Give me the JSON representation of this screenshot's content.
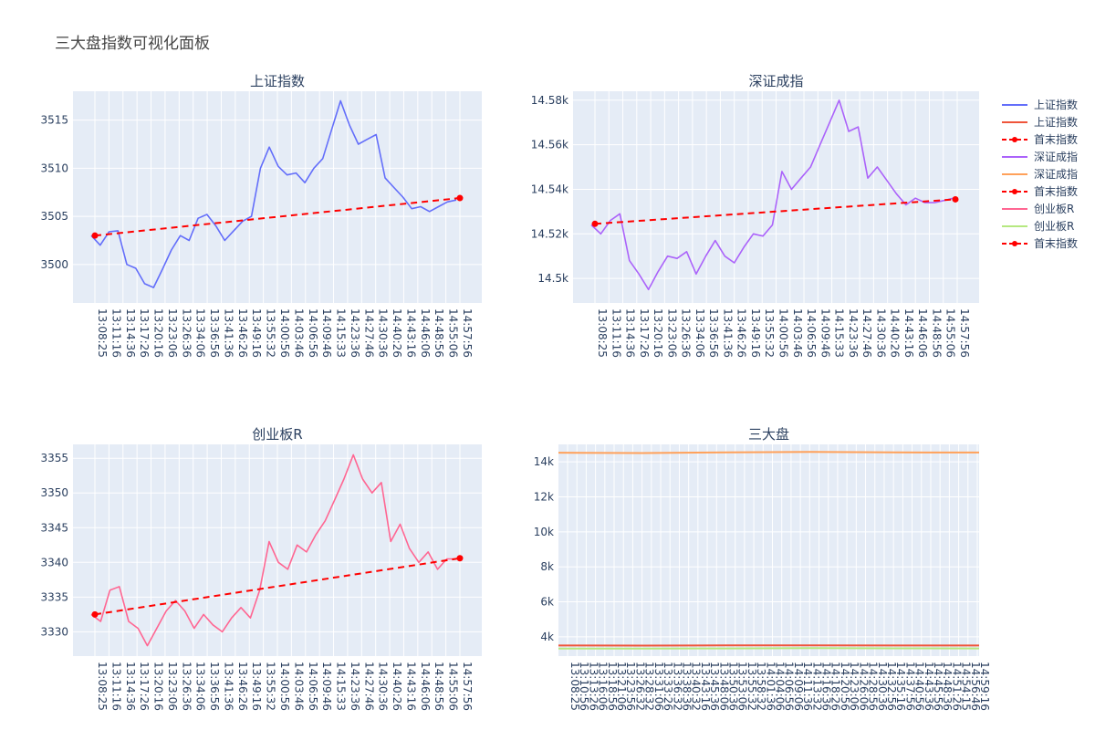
{
  "title": "三大盘指数可视化面板",
  "colors": {
    "shanghai": "#636efa",
    "shenzhen": "#ab63fa",
    "chinext": "#ff6692",
    "endpoints": "#ff0000",
    "ov_shanghai": "#ef553b",
    "ov_shenzhen": "#ffa15a",
    "ov_chinext": "#b6e880",
    "plot_bg": "#e5ecf6",
    "grid": "#ffffff"
  },
  "legend": {
    "items": [
      {
        "label": "上证指数",
        "color": "#636efa",
        "style": "line"
      },
      {
        "label": "上证指数",
        "color": "#ef553b",
        "style": "line"
      },
      {
        "label": "首末指数",
        "color": "#ff0000",
        "style": "dashmarker"
      },
      {
        "label": "深证成指",
        "color": "#ab63fa",
        "style": "line"
      },
      {
        "label": "深证成指",
        "color": "#ffa15a",
        "style": "line"
      },
      {
        "label": "首末指数",
        "color": "#ff0000",
        "style": "dashmarker"
      },
      {
        "label": "创业板R",
        "color": "#ff6692",
        "style": "line"
      },
      {
        "label": "创业板R",
        "color": "#b6e880",
        "style": "line"
      },
      {
        "label": "首末指数",
        "color": "#ff0000",
        "style": "dashmarker"
      }
    ]
  },
  "chart_data": [
    {
      "type": "line",
      "title": "上证指数",
      "xlabel": "",
      "ylabel": "",
      "x_ticks": [
        "13:08:25",
        "13:11:16",
        "13:14:36",
        "13:17:26",
        "13:20:16",
        "13:23:06",
        "13:26:36",
        "13:34:06",
        "13:36:56",
        "13:41:36",
        "13:46:26",
        "13:49:16",
        "13:55:32",
        "14:00:56",
        "14:03:46",
        "14:06:56",
        "14:09:46",
        "14:15:33",
        "14:23:36",
        "14:27:46",
        "14:30:36",
        "14:40:26",
        "14:43:16",
        "14:46:06",
        "14:48:56",
        "14:55:06",
        "14:57:56"
      ],
      "y_ticks": [
        3500,
        3505,
        3510,
        3515
      ],
      "ylim": [
        3496,
        3518
      ],
      "series": [
        {
          "name": "上证指数",
          "key": "shanghai",
          "values": [
            3503.0,
            3502.0,
            3503.4,
            3503.5,
            3500.0,
            3499.6,
            3498.0,
            3497.6,
            3499.5,
            3501.5,
            3503.0,
            3502.5,
            3504.8,
            3505.2,
            3504.0,
            3502.5,
            3503.5,
            3504.5,
            3505.0,
            3510.0,
            3512.2,
            3510.2,
            3509.3,
            3509.5,
            3508.5,
            3510.0,
            3511.0,
            3514.0,
            3517.0,
            3514.5,
            3512.5,
            3513.0,
            3513.5,
            3509.0,
            3508.0,
            3507.0,
            3505.8,
            3506.0,
            3505.5,
            3506.0,
            3506.5,
            3506.7
          ]
        }
      ],
      "endpoints": {
        "name": "首末指数",
        "values": [
          3503.0,
          3506.9
        ]
      }
    },
    {
      "type": "line",
      "title": "深证成指",
      "xlabel": "",
      "ylabel": "",
      "x_ticks": [
        "13:08:25",
        "13:11:16",
        "13:14:36",
        "13:17:26",
        "13:20:16",
        "13:23:06",
        "13:26:36",
        "13:34:06",
        "13:36:56",
        "13:41:36",
        "13:46:26",
        "13:49:16",
        "13:55:32",
        "14:00:56",
        "14:03:46",
        "14:06:56",
        "14:09:46",
        "14:15:33",
        "14:23:36",
        "14:27:46",
        "14:30:36",
        "14:40:26",
        "14:43:16",
        "14:46:06",
        "14:48:56",
        "14:55:06",
        "14:57:56"
      ],
      "y_ticks": [
        14500,
        14520,
        14540,
        14560,
        14580
      ],
      "y_tick_labels": [
        "14.5k",
        "14.52k",
        "14.54k",
        "14.56k",
        "14.58k"
      ],
      "ylim": [
        14489,
        14584
      ],
      "series": [
        {
          "name": "深证成指",
          "key": "shenzhen",
          "values": [
            14524,
            14520,
            14526,
            14529,
            14508,
            14502,
            14495,
            14503,
            14510,
            14509,
            14512,
            14502,
            14510,
            14517,
            14510,
            14507,
            14514,
            14520,
            14519,
            14524,
            14548,
            14540,
            14545,
            14550,
            14560,
            14570,
            14580,
            14566,
            14568,
            14545,
            14550,
            14544,
            14538,
            14533,
            14536,
            14534,
            14534,
            14535,
            14536
          ]
        }
      ],
      "endpoints": {
        "name": "首末指数",
        "values": [
          14524.5,
          14535.5
        ]
      }
    },
    {
      "type": "line",
      "title": "创业板R",
      "xlabel": "",
      "ylabel": "",
      "x_ticks": [
        "13:08:25",
        "13:11:16",
        "13:14:36",
        "13:17:26",
        "13:20:16",
        "13:23:06",
        "13:26:36",
        "13:34:06",
        "13:36:56",
        "13:41:36",
        "13:46:26",
        "13:49:16",
        "13:55:32",
        "14:00:56",
        "14:03:46",
        "14:06:56",
        "14:09:46",
        "14:15:33",
        "14:23:36",
        "14:27:46",
        "14:30:36",
        "14:40:26",
        "14:43:16",
        "14:46:06",
        "14:48:56",
        "14:55:06",
        "14:57:56"
      ],
      "y_ticks": [
        3330,
        3335,
        3340,
        3345,
        3350,
        3355
      ],
      "ylim": [
        3326.5,
        3357
      ],
      "series": [
        {
          "name": "创业板R",
          "key": "chinext",
          "values": [
            3332.5,
            3331.5,
            3336.0,
            3336.5,
            3331.5,
            3330.5,
            3328.0,
            3330.5,
            3333.0,
            3334.5,
            3333.0,
            3330.5,
            3332.5,
            3331.0,
            3330.0,
            3332.0,
            3333.5,
            3332.0,
            3336.0,
            3343.0,
            3340.0,
            3339.0,
            3342.5,
            3341.5,
            3344.0,
            3346.0,
            3349.0,
            3352.0,
            3355.5,
            3352.0,
            3350.0,
            3351.5,
            3343.0,
            3345.5,
            3342.0,
            3340.0,
            3341.5,
            3339.0,
            3340.5,
            3340.5
          ]
        }
      ],
      "endpoints": {
        "name": "首末指数",
        "values": [
          3332.5,
          3340.6
        ]
      }
    },
    {
      "type": "line",
      "title": "三大盘",
      "xlabel": "",
      "ylabel": "",
      "x_ticks": [
        "13:08:25",
        "13:10:56",
        "13:13:26",
        "13:16:06",
        "13:18:56",
        "13:21:06",
        "13:23:56",
        "13:26:32",
        "13:28:32",
        "13:31:06",
        "13:33:26",
        "13:36:32",
        "13:38:36",
        "13:40:32",
        "13:43:16",
        "13:45:36",
        "13:48:06",
        "13:50:36",
        "13:53:06",
        "13:55:32",
        "13:58:32",
        "14:01:36",
        "14:04:06",
        "14:06:56",
        "14:09:06",
        "14:11:36",
        "14:13:32",
        "14:16:36",
        "14:18:26",
        "14:20:56",
        "14:23:06",
        "14:26:06",
        "14:28:56",
        "14:30:36",
        "14:32:56",
        "14:35:16",
        "14:37:56",
        "14:40:56",
        "14:43:36",
        "14:45:56",
        "14:48:36",
        "14:51:26",
        "14:54:15",
        "14:56:46",
        "14:59:16"
      ],
      "y_ticks": [
        4000,
        6000,
        8000,
        10000,
        12000,
        14000
      ],
      "y_tick_labels": [
        "4k",
        "6k",
        "8k",
        "10k",
        "12k",
        "14k"
      ],
      "ylim": [
        2900,
        15000
      ],
      "series": [
        {
          "name": "深证成指",
          "key": "ov_shenzhen",
          "values": [
            14524,
            14505,
            14540,
            14570,
            14540,
            14536
          ]
        },
        {
          "name": "上证指数",
          "key": "ov_shanghai",
          "values": [
            3503,
            3498,
            3510,
            3517,
            3506,
            3507
          ]
        },
        {
          "name": "创业板R",
          "key": "ov_chinext",
          "values": [
            3332,
            3329,
            3340,
            3355,
            3341,
            3340
          ]
        }
      ]
    }
  ]
}
